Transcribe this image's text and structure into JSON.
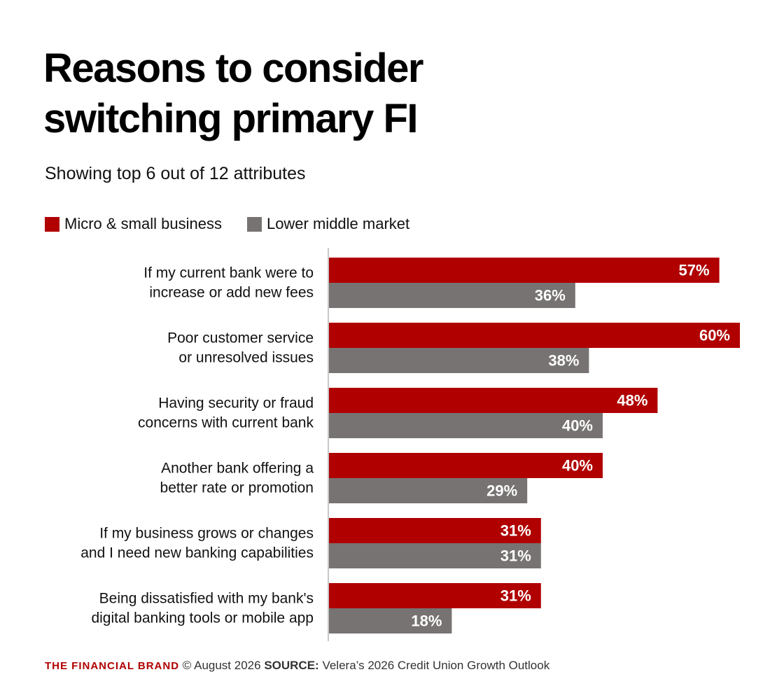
{
  "header": {
    "title_line1": "Reasons to consider",
    "title_line2": "switching primary FI",
    "subtitle": "Showing top 6 out of 12 attributes"
  },
  "colors": {
    "micro_small": "#b00000",
    "lower_middle": "#777372",
    "brand_red": "#b00000",
    "axis": "#c8c8c8"
  },
  "chart_data": {
    "type": "bar",
    "orientation": "horizontal",
    "categories": [
      [
        "If my current bank were to",
        "increase or add new fees"
      ],
      [
        "Poor customer service",
        "or unresolved issues"
      ],
      [
        "Having security or fraud",
        "concerns with current bank"
      ],
      [
        "Another bank offering a",
        "better rate or promotion"
      ],
      [
        "If my business grows or changes",
        "and I need new banking capabilities"
      ],
      [
        "Being dissatisfied with my bank's",
        "digital banking tools or mobile app"
      ]
    ],
    "series": [
      {
        "name": "Micro & small business",
        "values": [
          57,
          60,
          48,
          40,
          31,
          31
        ],
        "color": "#b00000"
      },
      {
        "name": "Lower middle market",
        "values": [
          36,
          38,
          40,
          29,
          31,
          18
        ],
        "color": "#777372"
      }
    ],
    "value_suffix": "%",
    "xlim": [
      0,
      60
    ],
    "grid": false,
    "legend_position": "top-left"
  },
  "footer": {
    "brand": "THE FINANCIAL BRAND",
    "date": "© August 2026",
    "source_label": "SOURCE:",
    "source_text": "Velera’s 2026 Credit Union Growth Outlook"
  }
}
